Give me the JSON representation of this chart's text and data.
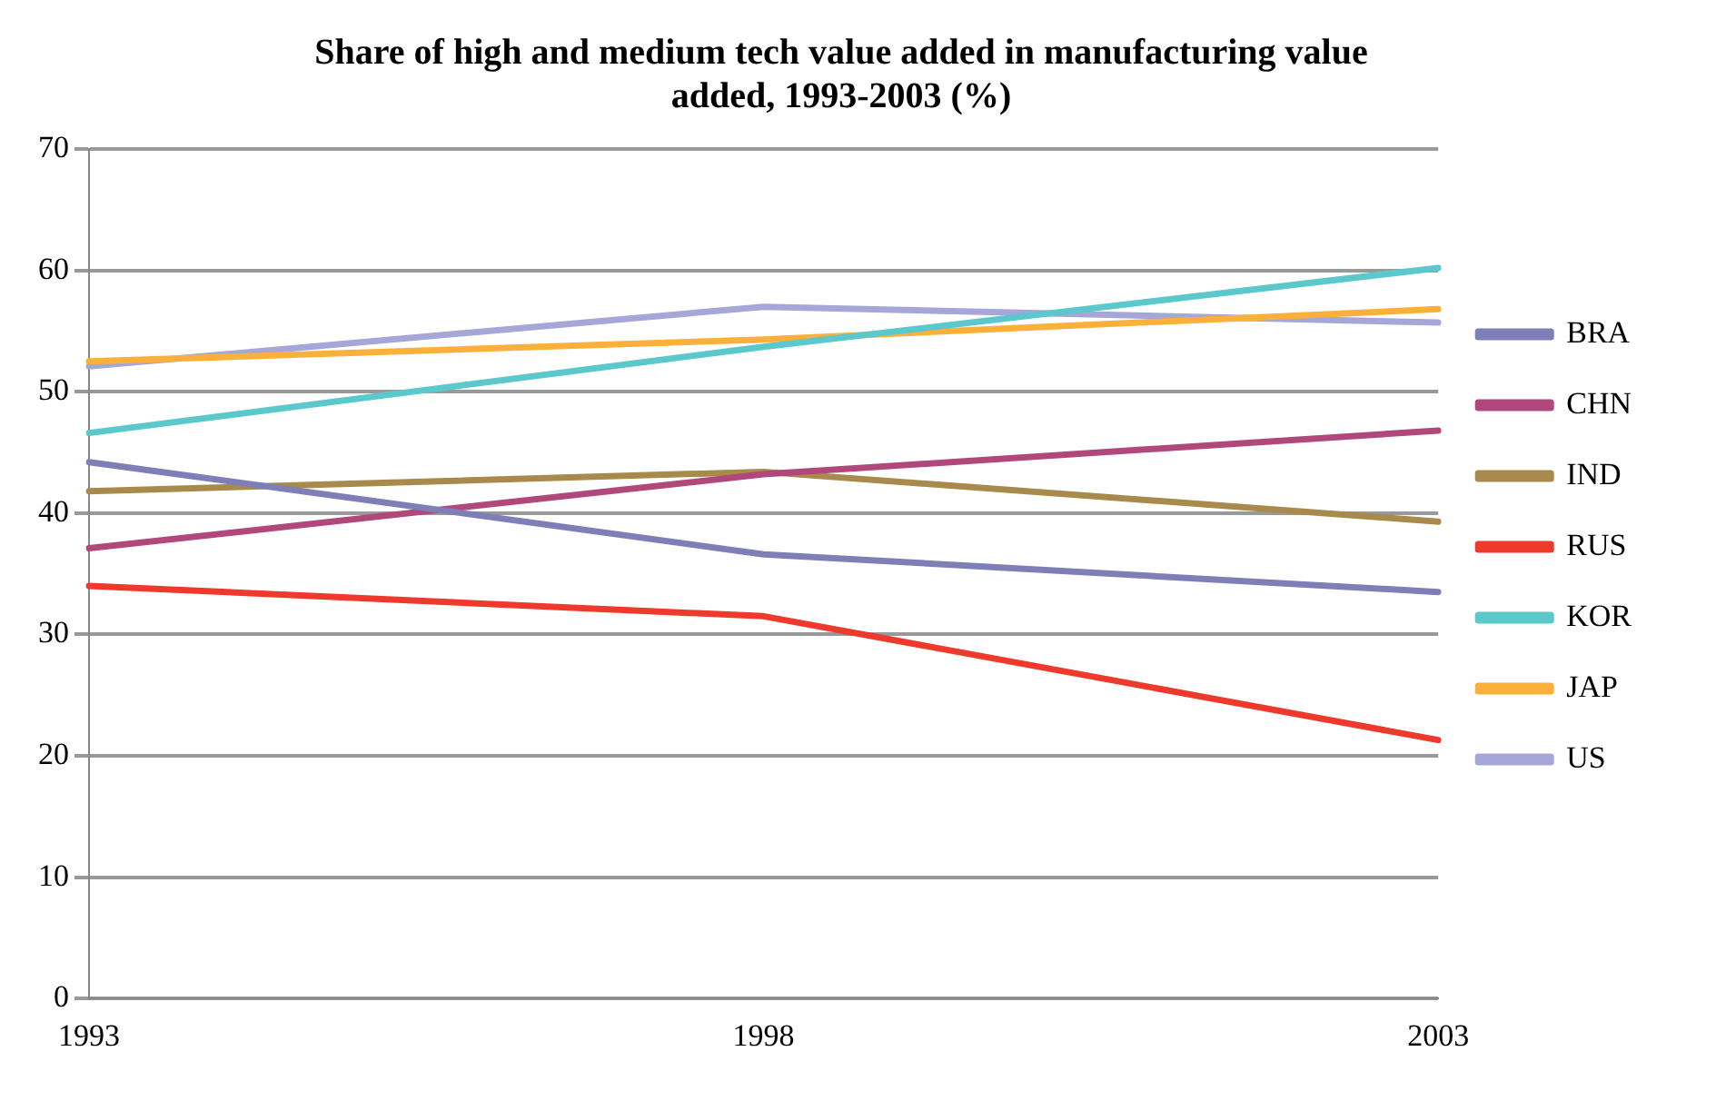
{
  "chart_data": {
    "type": "line",
    "title": "Share of high and medium tech value added in manufacturing value added, 1993-2003 (%)",
    "categories": [
      "1993",
      "1998",
      "2003"
    ],
    "ylim": [
      0,
      70
    ],
    "yticks": [
      0,
      10,
      20,
      30,
      40,
      50,
      60,
      70
    ],
    "grid": "y",
    "legend": "right",
    "marker": "none",
    "series": [
      {
        "name": "BRA",
        "color": "#7f7fb8",
        "values": [
          44.2,
          36.6,
          33.5
        ]
      },
      {
        "name": "CHN",
        "color": "#b0487c",
        "values": [
          37.1,
          43.2,
          46.8
        ]
      },
      {
        "name": "IND",
        "color": "#a88a4c",
        "values": [
          41.8,
          43.4,
          39.3
        ]
      },
      {
        "name": "RUS",
        "color": "#ee3a2c",
        "values": [
          34.0,
          31.5,
          21.3
        ]
      },
      {
        "name": "KOR",
        "color": "#5bc8cc",
        "values": [
          46.6,
          53.7,
          60.2
        ]
      },
      {
        "name": "JAP",
        "color": "#fbb03b",
        "values": [
          52.5,
          54.3,
          56.8
        ]
      },
      {
        "name": "US",
        "color": "#a6a6d8",
        "values": [
          52.1,
          57.0,
          55.7
        ]
      }
    ]
  }
}
